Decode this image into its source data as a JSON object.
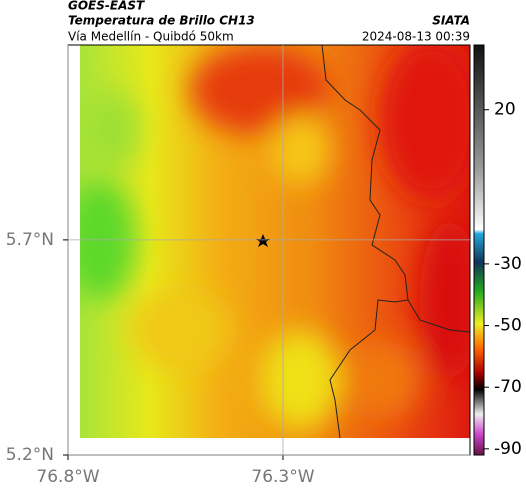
{
  "header": {
    "title": "GOES-EAST",
    "subtitle": "Temperatura de Brillo CH13",
    "route": "Vía Medellín - Quibdó 50km",
    "source": "SIATA",
    "timestamp": "2024-08-13 00:39"
  },
  "map": {
    "xlim": [
      -76.8,
      -75.865
    ],
    "ylim": [
      5.2,
      6.153
    ],
    "xticks": [
      {
        "value": -76.8,
        "label": "76.8°W"
      },
      {
        "value": -76.3,
        "label": "76.3°W"
      }
    ],
    "yticks": [
      {
        "value": 5.2,
        "label": "5.2°N"
      },
      {
        "value": 5.7,
        "label": "5.7°N"
      }
    ],
    "grid": true
  },
  "colorbar": {
    "clim": [
      -92,
      41
    ],
    "ticks": [
      20,
      -30,
      -50,
      -70,
      -90
    ]
  }
}
